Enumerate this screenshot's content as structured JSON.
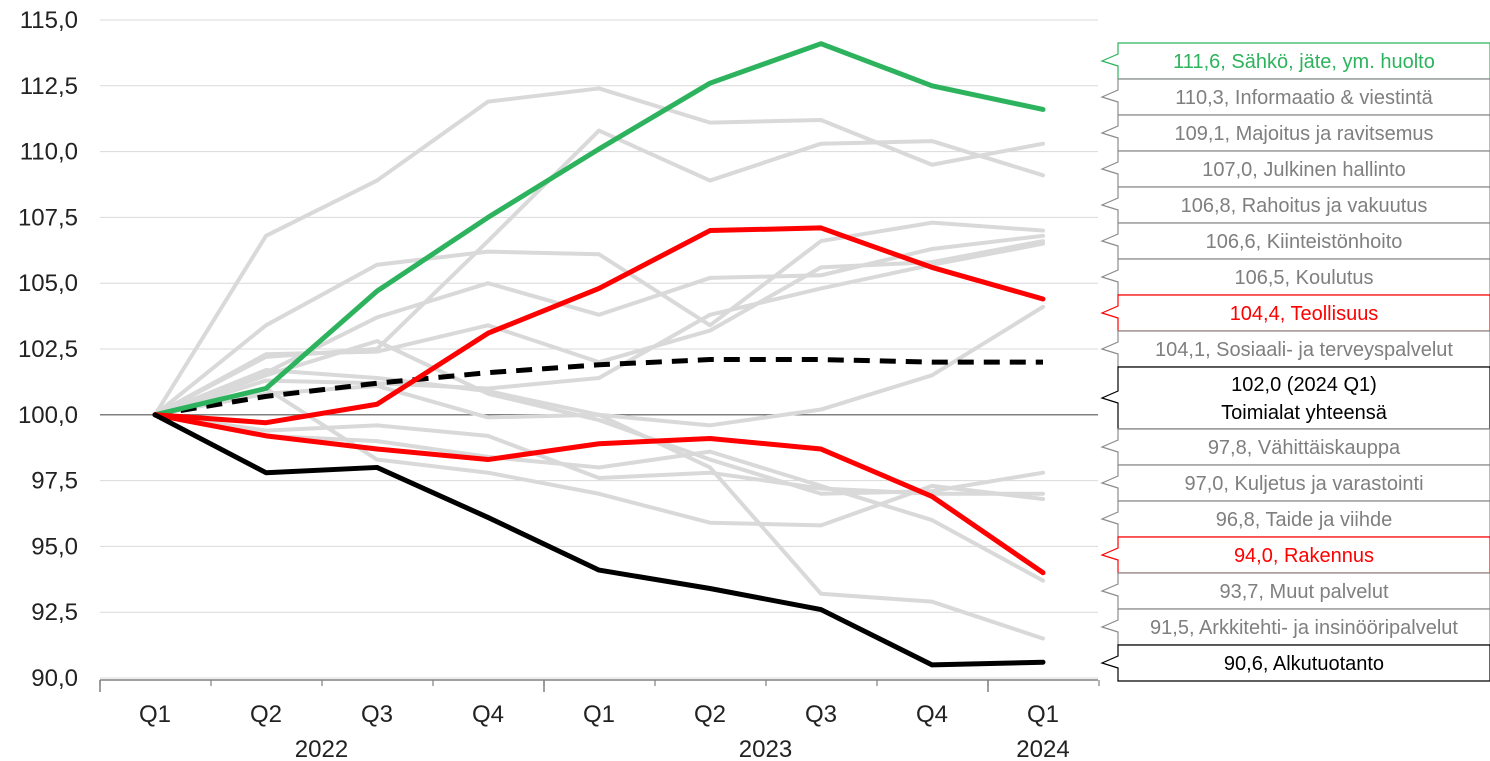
{
  "chart_data": {
    "type": "line",
    "title": "",
    "xlabel": "",
    "ylabel": "",
    "ylim": [
      90,
      115
    ],
    "yticks": [
      "90,0",
      "92,5",
      "95,0",
      "97,5",
      "100,0",
      "102,5",
      "105,0",
      "107,5",
      "110,0",
      "112,5",
      "115,0"
    ],
    "ytick_values": [
      90,
      92.5,
      95,
      97.5,
      100,
      102.5,
      105,
      107.5,
      110,
      112.5,
      115
    ],
    "categories": [
      "Q1",
      "Q2",
      "Q3",
      "Q4",
      "Q1",
      "Q2",
      "Q3",
      "Q4",
      "Q1"
    ],
    "years": [
      {
        "label": "2022",
        "from": 0,
        "to": 3
      },
      {
        "label": "2023",
        "from": 4,
        "to": 7
      },
      {
        "label": "2024",
        "from": 8,
        "to": 8
      }
    ],
    "grid": true,
    "baseline": 100,
    "series": [
      {
        "name": "Informaatio & viestintä",
        "label": "110,3, Informaatio & viestintä",
        "color": "#d9d9d9",
        "label_color": "#7f7f7f",
        "values": [
          100,
          106.8,
          108.9,
          111.9,
          112.4,
          111.1,
          111.2,
          109.5,
          110.3
        ]
      },
      {
        "name": "Majoitus ja ravitsemus",
        "label": "109,1, Majoitus ja ravitsemus",
        "color": "#d9d9d9",
        "label_color": "#7f7f7f",
        "values": [
          100,
          102.2,
          102.5,
          106.6,
          110.8,
          108.9,
          110.3,
          110.4,
          109.1
        ]
      },
      {
        "name": "Julkinen hallinto",
        "label": "107,0, Julkinen hallinto",
        "color": "#d9d9d9",
        "label_color": "#7f7f7f",
        "values": [
          100,
          103.4,
          105.7,
          106.2,
          106.1,
          103.4,
          106.6,
          107.3,
          107.0
        ]
      },
      {
        "name": "Rahoitus ja vakuutus",
        "label": "106,8, Rahoitus ja vakuutus",
        "color": "#d9d9d9",
        "label_color": "#7f7f7f",
        "values": [
          100,
          101.6,
          103.7,
          105.0,
          103.8,
          105.2,
          105.3,
          106.3,
          106.8
        ]
      },
      {
        "name": "Kiinteistönhoito",
        "label": "106,6, Kiinteistönhoito",
        "color": "#d9d9d9",
        "label_color": "#7f7f7f",
        "values": [
          100,
          102.3,
          102.4,
          103.4,
          102.0,
          103.2,
          105.6,
          105.8,
          106.6
        ]
      },
      {
        "name": "Koulutus",
        "label": "106,5, Koulutus",
        "color": "#d9d9d9",
        "label_color": "#7f7f7f",
        "values": [
          100,
          101.3,
          101.2,
          101.0,
          101.4,
          103.8,
          104.8,
          105.7,
          106.5
        ]
      },
      {
        "name": "Sosiaali- ja terveyspalvelut",
        "label": "104,1, Sosiaali- ja terveyspalvelut",
        "color": "#d9d9d9",
        "label_color": "#7f7f7f",
        "values": [
          100,
          100.8,
          101.1,
          99.9,
          100.0,
          99.6,
          100.2,
          101.5,
          104.1
        ]
      },
      {
        "name": "Vähittäiskauppa",
        "label": "97,8, Vähittäiskauppa",
        "color": "#d9d9d9",
        "label_color": "#7f7f7f",
        "values": [
          100,
          101.5,
          102.8,
          100.8,
          99.8,
          98.3,
          97.0,
          97.1,
          97.8
        ]
      },
      {
        "name": "Kuljetus ja varastointi",
        "label": "97,0, Kuljetus ja varastointi",
        "color": "#d9d9d9",
        "label_color": "#7f7f7f",
        "values": [
          100,
          99.4,
          99.6,
          99.2,
          97.6,
          97.8,
          97.2,
          97.0,
          97.0
        ]
      },
      {
        "name": "Taide ja viihde",
        "label": "96,8, Taide ja viihde",
        "color": "#d9d9d9",
        "label_color": "#7f7f7f",
        "values": [
          100,
          101.0,
          98.3,
          97.8,
          97.0,
          95.9,
          95.8,
          97.3,
          96.8
        ]
      },
      {
        "name": "Muut palvelut",
        "label": "93,7, Muut palvelut",
        "color": "#d9d9d9",
        "label_color": "#7f7f7f",
        "values": [
          100,
          99.2,
          99.0,
          98.4,
          98.0,
          98.6,
          97.3,
          96.0,
          93.7
        ]
      },
      {
        "name": "Arkkitehti- ja insinööripalvelut",
        "label": "91,5, Arkkitehti- ja insinööripalvelut",
        "color": "#d9d9d9",
        "label_color": "#7f7f7f",
        "values": [
          100,
          101.7,
          101.4,
          100.9,
          100.0,
          98.0,
          93.2,
          92.9,
          91.5
        ]
      },
      {
        "name": "Toimialat yhteensä",
        "label": "102,0 (2024 Q1)",
        "label2": "Toimialat yhteensä",
        "color": "#000000",
        "label_color": "#000000",
        "dashed": true,
        "values": [
          100,
          100.7,
          101.2,
          101.6,
          101.9,
          102.1,
          102.1,
          102.0,
          102.0
        ]
      },
      {
        "name": "Sähkö, jäte, ym. huolto",
        "label": "111,6, Sähkö, jäte, ym. huolto",
        "color": "#2db35d",
        "label_color": "#2db35d",
        "values": [
          100,
          101.0,
          104.7,
          107.5,
          110.1,
          112.6,
          114.1,
          112.5,
          111.6
        ]
      },
      {
        "name": "Teollisuus",
        "label": "104,4, Teollisuus",
        "color": "#ff0000",
        "label_color": "#ff0000",
        "values": [
          100,
          99.7,
          100.4,
          103.1,
          104.8,
          107.0,
          107.1,
          105.6,
          104.4
        ]
      },
      {
        "name": "Rakennus",
        "label": "94,0, Rakennus",
        "color": "#ff0000",
        "label_color": "#ff0000",
        "values": [
          100,
          99.2,
          98.7,
          98.3,
          98.9,
          99.1,
          98.7,
          96.9,
          94.0
        ]
      },
      {
        "name": "Alkutuotanto",
        "label": "90,6, Alkutuotanto",
        "color": "#000000",
        "label_color": "#000000",
        "values": [
          100,
          97.8,
          98.0,
          96.1,
          94.1,
          93.4,
          92.6,
          90.5,
          90.6
        ]
      }
    ]
  }
}
